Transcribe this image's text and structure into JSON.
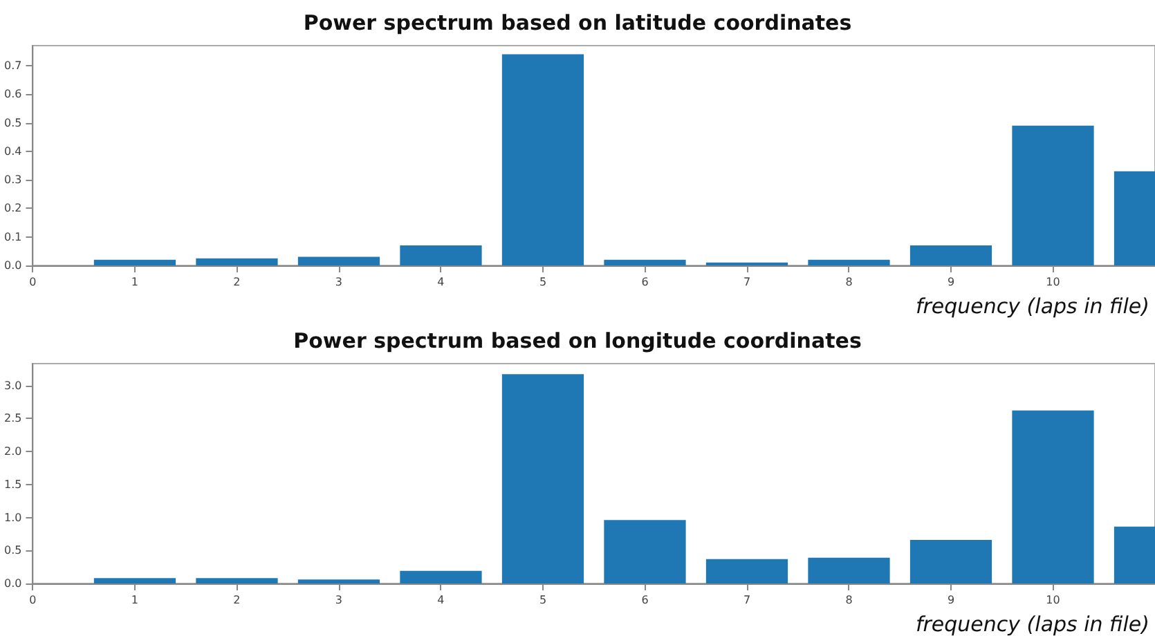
{
  "chart_data": [
    {
      "type": "bar",
      "title": "Power spectrum based on latitude coordinates",
      "xlabel": "frequency (laps in file)",
      "x": [
        1,
        2,
        3,
        4,
        5,
        6,
        7,
        8,
        9,
        10,
        11
      ],
      "values": [
        0.02,
        0.025,
        0.03,
        0.07,
        0.74,
        0.02,
        0.01,
        0.02,
        0.07,
        0.49,
        0.33
      ],
      "color": "#1f77b4",
      "xlim": [
        0,
        11
      ],
      "xticks": [
        0,
        1,
        2,
        3,
        4,
        5,
        6,
        7,
        8,
        9,
        10
      ],
      "ylim": [
        0,
        0.77
      ],
      "yticks": [
        {
          "value": 0,
          "label": "0.0"
        },
        {
          "value": 0.1,
          "label": "0.1"
        },
        {
          "value": 0.2,
          "label": "0.2"
        },
        {
          "value": 0.3,
          "label": "0.3"
        },
        {
          "value": 0.4,
          "label": "0.4"
        },
        {
          "value": 0.5,
          "label": "0.5"
        },
        {
          "value": 0.6,
          "label": "0.6"
        },
        {
          "value": 0.7,
          "label": "0.7"
        }
      ],
      "grid": false
    },
    {
      "type": "bar",
      "title": "Power spectrum based on longitude coordinates",
      "xlabel": "frequency (laps in file)",
      "x": [
        1,
        2,
        3,
        4,
        5,
        6,
        7,
        8,
        9,
        10,
        11
      ],
      "values": [
        0.08,
        0.08,
        0.06,
        0.19,
        3.17,
        0.96,
        0.37,
        0.39,
        0.66,
        2.62,
        0.86
      ],
      "color": "#1f77b4",
      "xlim": [
        0,
        11
      ],
      "xticks": [
        0,
        1,
        2,
        3,
        4,
        5,
        6,
        7,
        8,
        9,
        10
      ],
      "ylim": [
        0,
        3.33
      ],
      "yticks": [
        {
          "value": 0,
          "label": "0.0"
        },
        {
          "value": 0.5,
          "label": "0.5"
        },
        {
          "value": 1,
          "label": "1.0"
        },
        {
          "value": 1.5,
          "label": "1.5"
        },
        {
          "value": 2,
          "label": "2.0"
        },
        {
          "value": 2.5,
          "label": "2.5"
        },
        {
          "value": 3,
          "label": "3.0"
        }
      ],
      "grid": false
    }
  ]
}
